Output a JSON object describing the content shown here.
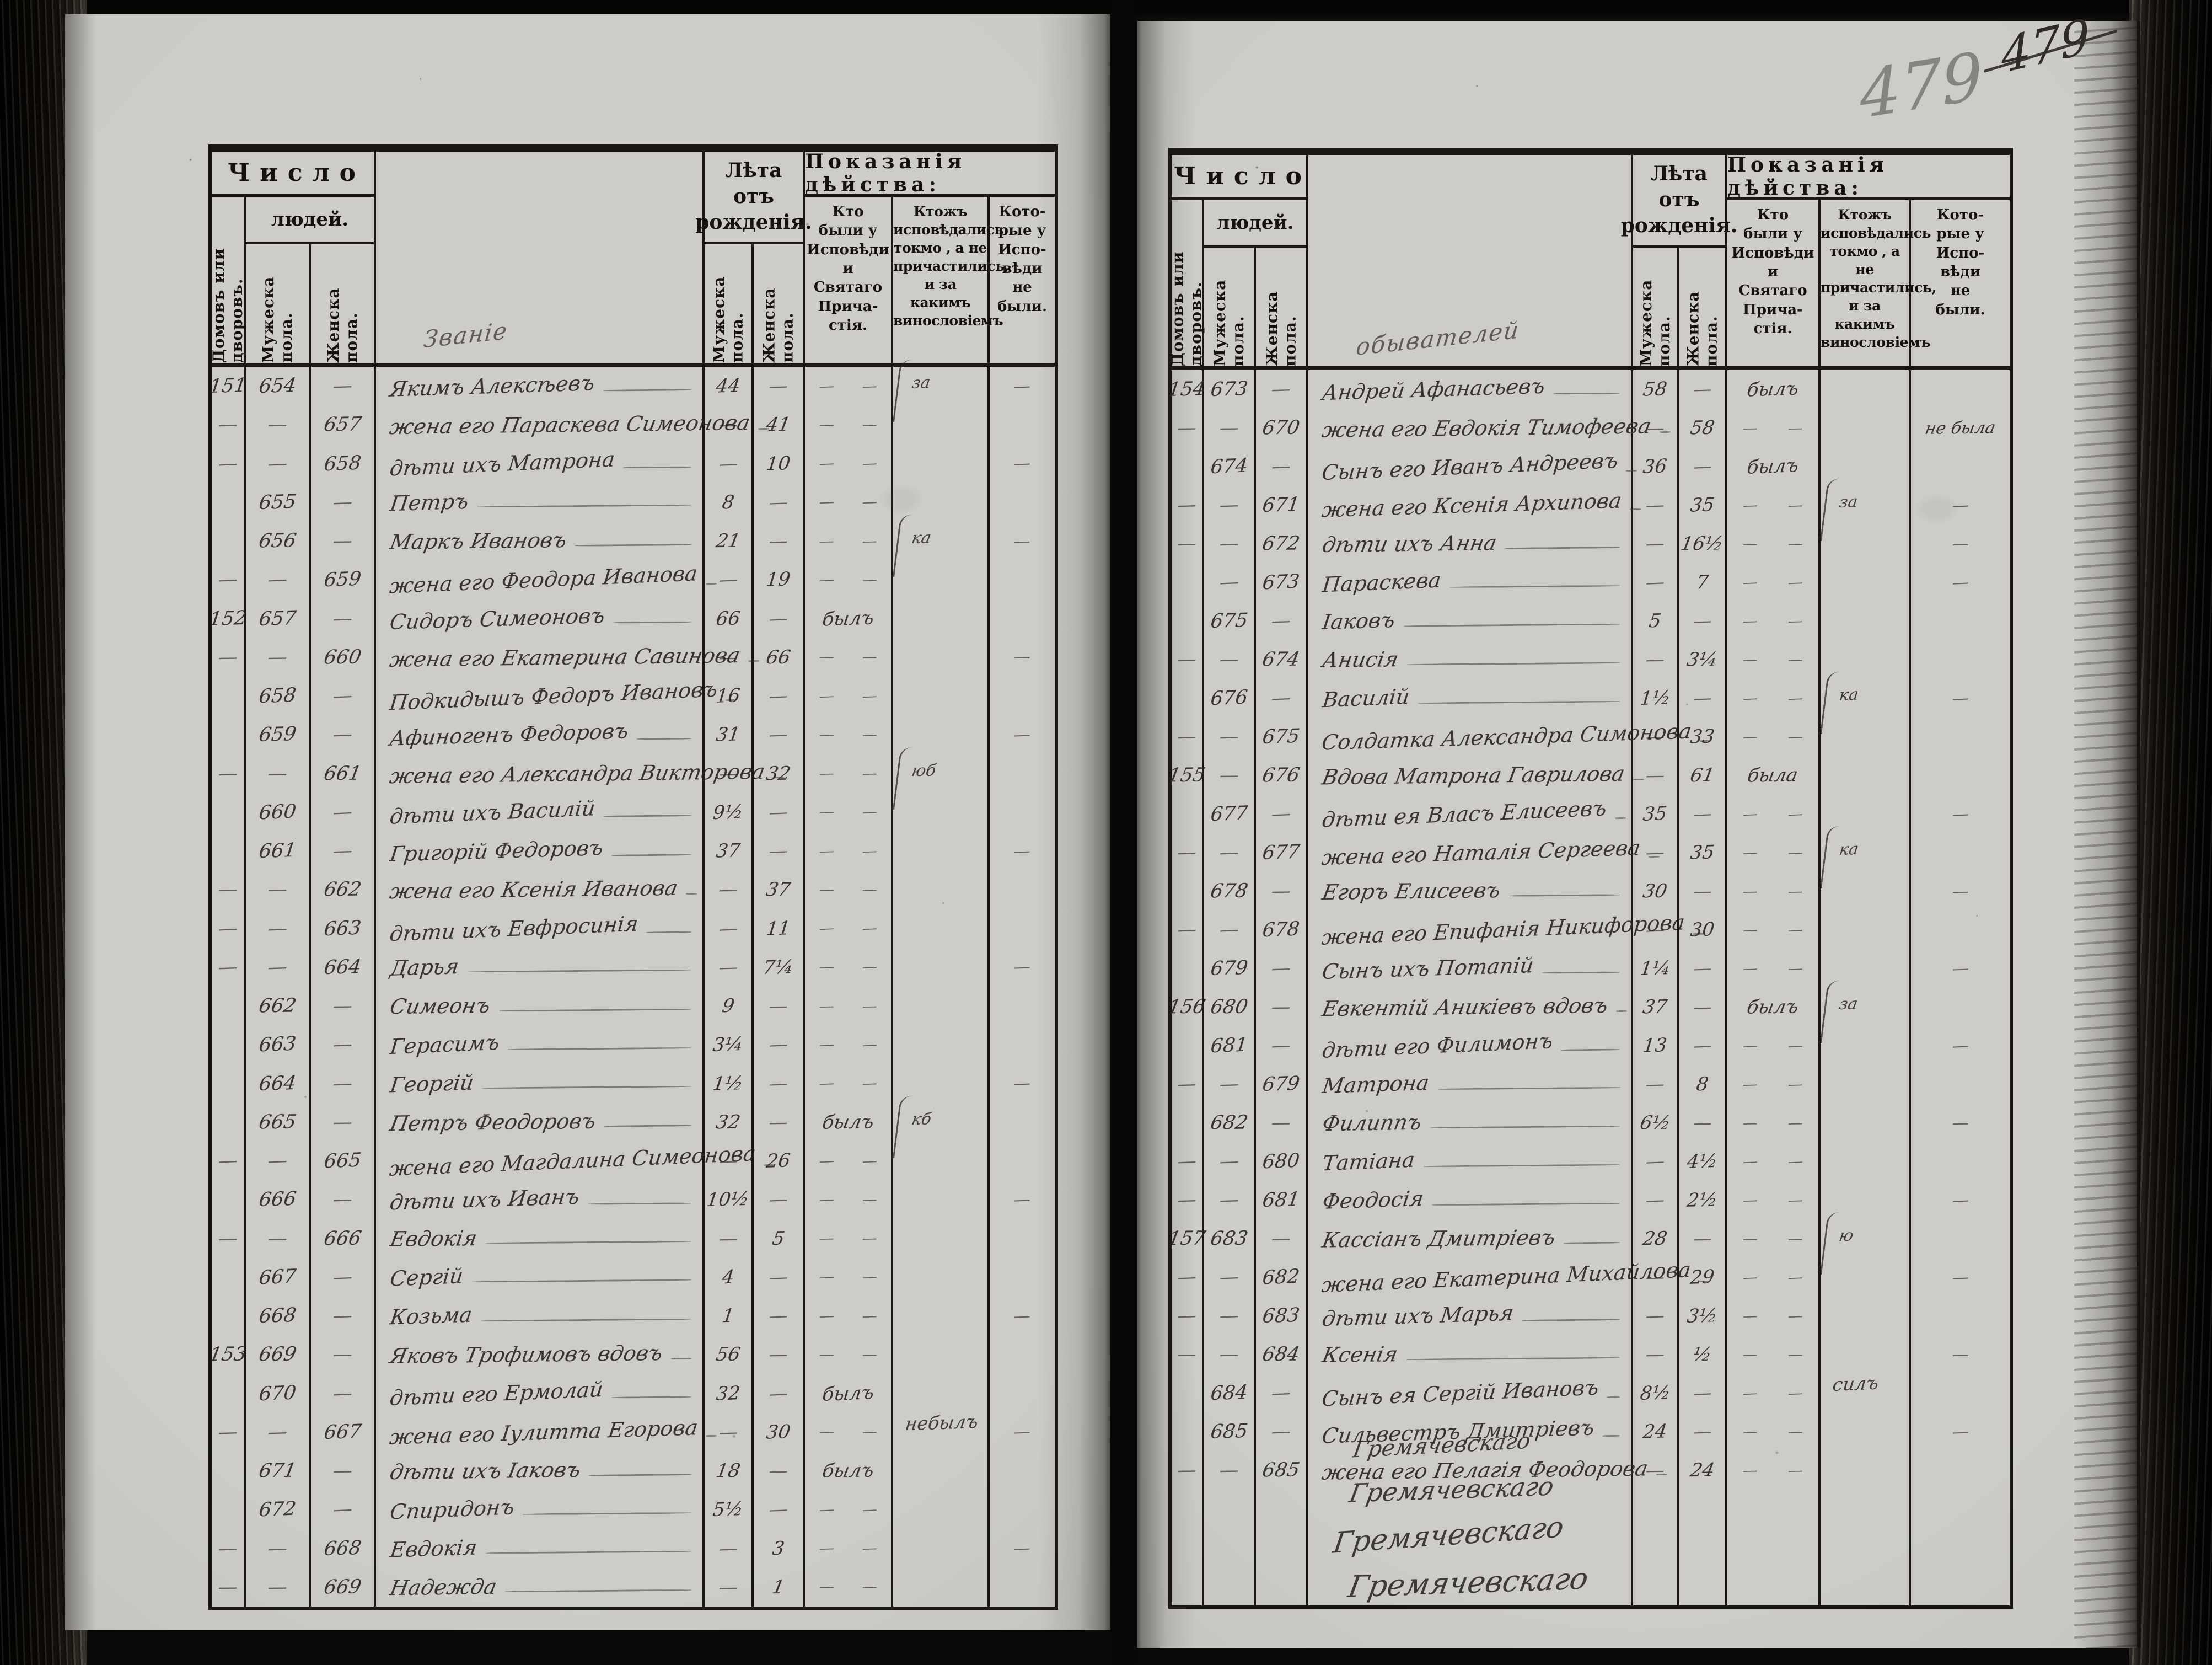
{
  "page_numbers": {
    "pencil": "479",
    "ink": "479"
  },
  "header": {
    "number_group": "Число",
    "number_group2": "людей.",
    "col_houses": "Домовъ или дворовъ.",
    "col_male": "Мужеска пола.",
    "col_female": "Женска пола.",
    "age_group": [
      "Лѣта отъ",
      "рожденія."
    ],
    "action_group": "Показанія дѣйства:",
    "action_cols": [
      [
        "Кто",
        "были у",
        "Исповѣди",
        "и",
        "Святаго",
        "Прича-",
        "стія."
      ],
      [
        "Ктожъ",
        "исповѣдались",
        "токмо , а не",
        "причастились,",
        "и за какимъ",
        "винословіемъ"
      ],
      [
        "Кото-",
        "рые у",
        "Испо-",
        "вѣди",
        "не",
        "были."
      ]
    ]
  },
  "pages": [
    {
      "side": "left",
      "scribble": "Званіе",
      "rows": [
        {
          "d": "151",
          "mn": "654",
          "fn": "—",
          "nm": "Якимъ Алексѣевъ",
          "ma": "44",
          "fa": "—",
          "cf": "— —",
          "nt": "за",
          "kt": "—"
        },
        {
          "d": "—",
          "mn": "—",
          "fn": "657",
          "nm": "жена его Параскева Симеонова",
          "ma": "—",
          "fa": "41",
          "cf": "— —",
          "nt": "",
          "kt": ""
        },
        {
          "d": "—",
          "mn": "—",
          "fn": "658",
          "nm": "дѣти ихъ Матрона",
          "ma": "—",
          "fa": "10",
          "cf": "— —",
          "nt": "",
          "kt": "—"
        },
        {
          "d": "",
          "mn": "655",
          "fn": "—",
          "nm": "Петръ",
          "ma": "8",
          "fa": "—",
          "cf": "— —",
          "nt": "",
          "kt": ""
        },
        {
          "d": "",
          "mn": "656",
          "fn": "—",
          "nm": "Маркъ Ивановъ",
          "ma": "21",
          "fa": "—",
          "cf": "— —",
          "nt": "ка",
          "kt": "—"
        },
        {
          "d": "—",
          "mn": "—",
          "fn": "659",
          "nm": "жена его Феодора Иванова",
          "ma": "—",
          "fa": "19",
          "cf": "— —",
          "nt": "",
          "kt": ""
        },
        {
          "d": "152",
          "mn": "657",
          "fn": "—",
          "nm": "Сидоръ Симеоновъ",
          "ma": "66",
          "fa": "—",
          "cf": "былъ",
          "nt": "",
          "kt": ""
        },
        {
          "d": "—",
          "mn": "—",
          "fn": "660",
          "nm": "жена его Екатерина Савинова",
          "ma": "—",
          "fa": "66",
          "cf": "— —",
          "nt": "",
          "kt": "—"
        },
        {
          "d": "",
          "mn": "658",
          "fn": "—",
          "nm": "Подкидышъ Федоръ Ивановъ",
          "ma": "16",
          "fa": "—",
          "cf": "— —",
          "nt": "",
          "kt": ""
        },
        {
          "d": "",
          "mn": "659",
          "fn": "—",
          "nm": "Афиногенъ Федоровъ",
          "ma": "31",
          "fa": "—",
          "cf": "— —",
          "nt": "",
          "kt": "—"
        },
        {
          "d": "—",
          "mn": "—",
          "fn": "661",
          "nm": "жена его Александра Викторова",
          "ma": "—",
          "fa": "32",
          "cf": "— —",
          "nt": "юб",
          "kt": ""
        },
        {
          "d": "",
          "mn": "660",
          "fn": "—",
          "nm": "дѣти ихъ Василій",
          "ma": "9½",
          "fa": "—",
          "cf": "— —",
          "nt": "",
          "kt": ""
        },
        {
          "d": "",
          "mn": "661",
          "fn": "—",
          "nm": "Григорій Федоровъ",
          "ma": "37",
          "fa": "—",
          "cf": "— —",
          "nt": "",
          "kt": "—"
        },
        {
          "d": "—",
          "mn": "—",
          "fn": "662",
          "nm": "жена его Ксенія Иванова",
          "ma": "—",
          "fa": "37",
          "cf": "— —",
          "nt": "",
          "kt": ""
        },
        {
          "d": "—",
          "mn": "—",
          "fn": "663",
          "nm": "дѣти ихъ Евфросинія",
          "ma": "—",
          "fa": "11",
          "cf": "— —",
          "nt": "",
          "kt": ""
        },
        {
          "d": "—",
          "mn": "—",
          "fn": "664",
          "nm": "Дарья",
          "ma": "—",
          "fa": "7¼",
          "cf": "— —",
          "nt": "",
          "kt": "—"
        },
        {
          "d": "",
          "mn": "662",
          "fn": "—",
          "nm": "Симеонъ",
          "ma": "9",
          "fa": "—",
          "cf": "— —",
          "nt": "",
          "kt": ""
        },
        {
          "d": "",
          "mn": "663",
          "fn": "—",
          "nm": "Герасимъ",
          "ma": "3¼",
          "fa": "—",
          "cf": "— —",
          "nt": "",
          "kt": ""
        },
        {
          "d": "",
          "mn": "664",
          "fn": "—",
          "nm": "Георгій",
          "ma": "1½",
          "fa": "—",
          "cf": "— —",
          "nt": "",
          "kt": "—"
        },
        {
          "d": "",
          "mn": "665",
          "fn": "—",
          "nm": "Петръ Феодоровъ",
          "ma": "32",
          "fa": "—",
          "cf": "былъ",
          "nt": "кб",
          "kt": ""
        },
        {
          "d": "—",
          "mn": "—",
          "fn": "665",
          "nm": "жена его Магдалина Симеонова",
          "ma": "—",
          "fa": "26",
          "cf": "— —",
          "nt": "",
          "kt": ""
        },
        {
          "d": "",
          "mn": "666",
          "fn": "—",
          "nm": "дѣти ихъ Иванъ",
          "ma": "10½",
          "fa": "—",
          "cf": "— —",
          "nt": "",
          "kt": "—"
        },
        {
          "d": "—",
          "mn": "—",
          "fn": "666",
          "nm": "Евдокія",
          "ma": "—",
          "fa": "5",
          "cf": "— —",
          "nt": "",
          "kt": ""
        },
        {
          "d": "",
          "mn": "667",
          "fn": "—",
          "nm": "Сергій",
          "ma": "4",
          "fa": "—",
          "cf": "— —",
          "nt": "",
          "kt": ""
        },
        {
          "d": "",
          "mn": "668",
          "fn": "—",
          "nm": "Козьма",
          "ma": "1",
          "fa": "—",
          "cf": "— —",
          "nt": "",
          "kt": "—"
        },
        {
          "d": "153",
          "mn": "669",
          "fn": "—",
          "nm": "Яковъ Трофимовъ вдовъ",
          "ma": "56",
          "fa": "—",
          "cf": "— —",
          "nt": "",
          "kt": ""
        },
        {
          "d": "",
          "mn": "670",
          "fn": "—",
          "nm": "дѣти его Ермолай",
          "ma": "32",
          "fa": "—",
          "cf": "былъ",
          "nt": "",
          "kt": ""
        },
        {
          "d": "—",
          "mn": "—",
          "fn": "667",
          "nm": "жена его Іулитта Егорова",
          "ma": "—",
          "fa": "30",
          "cf": "— —",
          "nt": "небылъ",
          "kt": "—"
        },
        {
          "d": "",
          "mn": "671",
          "fn": "—",
          "nm": "дѣти ихъ Іаковъ",
          "ma": "18",
          "fa": "—",
          "cf": "былъ",
          "nt": "",
          "kt": ""
        },
        {
          "d": "",
          "mn": "672",
          "fn": "—",
          "nm": "Спиридонъ",
          "ma": "5½",
          "fa": "—",
          "cf": "— —",
          "nt": "",
          "kt": ""
        },
        {
          "d": "—",
          "mn": "—",
          "fn": "668",
          "nm": "Евдокія",
          "ma": "—",
          "fa": "3",
          "cf": "— —",
          "nt": "",
          "kt": "—"
        },
        {
          "d": "—",
          "mn": "—",
          "fn": "669",
          "nm": "Надежда",
          "ma": "—",
          "fa": "1",
          "cf": "— —",
          "nt": "",
          "kt": ""
        }
      ]
    },
    {
      "side": "right",
      "scribble": "обывателей",
      "rows": [
        {
          "d": "154",
          "mn": "673",
          "fn": "—",
          "nm": "Андрей Афанасьевъ",
          "ma": "58",
          "fa": "—",
          "cf": "былъ",
          "nt": "",
          "kt": ""
        },
        {
          "d": "—",
          "mn": "—",
          "fn": "670",
          "nm": "жена его Евдокія Тимофеева",
          "ma": "—",
          "fa": "58",
          "cf": "— —",
          "nt": "",
          "kt": "не была"
        },
        {
          "d": "",
          "mn": "674",
          "fn": "—",
          "nm": "Сынъ его Иванъ Андреевъ",
          "ma": "36",
          "fa": "—",
          "cf": "былъ",
          "nt": "",
          "kt": ""
        },
        {
          "d": "—",
          "mn": "—",
          "fn": "671",
          "nm": "жена его Ксенія Архипова",
          "ma": "—",
          "fa": "35",
          "cf": "— —",
          "nt": "за",
          "kt": "—"
        },
        {
          "d": "—",
          "mn": "—",
          "fn": "672",
          "nm": "дѣти ихъ Анна",
          "ma": "—",
          "fa": "16½",
          "cf": "— —",
          "nt": "",
          "kt": "—"
        },
        {
          "d": "",
          "mn": "—",
          "fn": "673",
          "nm": "Параскева",
          "ma": "—",
          "fa": "7",
          "cf": "— —",
          "nt": "",
          "kt": "—"
        },
        {
          "d": "",
          "mn": "675",
          "fn": "—",
          "nm": "Іаковъ",
          "ma": "5",
          "fa": "—",
          "cf": "— —",
          "nt": "",
          "kt": ""
        },
        {
          "d": "—",
          "mn": "—",
          "fn": "674",
          "nm": "Анисія",
          "ma": "—",
          "fa": "3¼",
          "cf": "— —",
          "nt": "",
          "kt": ""
        },
        {
          "d": "",
          "mn": "676",
          "fn": "—",
          "nm": "Василій",
          "ma": "1½",
          "fa": "—",
          "cf": "— —",
          "nt": "ка",
          "kt": "—"
        },
        {
          "d": "—",
          "mn": "—",
          "fn": "675",
          "nm": "Солдатка Александра Симонова",
          "ma": "—",
          "fa": "33",
          "cf": "— —",
          "nt": "",
          "kt": ""
        },
        {
          "d": "155",
          "mn": "—",
          "fn": "676",
          "nm": "Вдова Матрона Гаврилова",
          "ma": "—",
          "fa": "61",
          "cf": "была",
          "nt": "",
          "kt": ""
        },
        {
          "d": "",
          "mn": "677",
          "fn": "—",
          "nm": "дѣти ея Власъ Елисеевъ",
          "ma": "35",
          "fa": "—",
          "cf": "— —",
          "nt": "",
          "kt": "—"
        },
        {
          "d": "—",
          "mn": "—",
          "fn": "677",
          "nm": "жена его Наталія Сергеева",
          "ma": "—",
          "fa": "35",
          "cf": "— —",
          "nt": "ка",
          "kt": ""
        },
        {
          "d": "",
          "mn": "678",
          "fn": "—",
          "nm": "Егоръ Елисеевъ",
          "ma": "30",
          "fa": "—",
          "cf": "— —",
          "nt": "",
          "kt": "—"
        },
        {
          "d": "—",
          "mn": "—",
          "fn": "678",
          "nm": "жена его Епифанія Никифорова",
          "ma": "—",
          "fa": "30",
          "cf": "— —",
          "nt": "",
          "kt": ""
        },
        {
          "d": "",
          "mn": "679",
          "fn": "—",
          "nm": "Сынъ ихъ Потапій",
          "ma": "1¼",
          "fa": "—",
          "cf": "— —",
          "nt": "",
          "kt": "—"
        },
        {
          "d": "156",
          "mn": "680",
          "fn": "—",
          "nm": "Евкентій Аникіевъ вдовъ",
          "ma": "37",
          "fa": "—",
          "cf": "былъ",
          "nt": "за",
          "kt": ""
        },
        {
          "d": "",
          "mn": "681",
          "fn": "—",
          "nm": "дѣти его Филимонъ",
          "ma": "13",
          "fa": "—",
          "cf": "— —",
          "nt": "",
          "kt": "—"
        },
        {
          "d": "—",
          "mn": "—",
          "fn": "679",
          "nm": "Матрона",
          "ma": "—",
          "fa": "8",
          "cf": "— —",
          "nt": "",
          "kt": ""
        },
        {
          "d": "",
          "mn": "682",
          "fn": "—",
          "nm": "Филиппъ",
          "ma": "6½",
          "fa": "—",
          "cf": "— —",
          "nt": "",
          "kt": "—"
        },
        {
          "d": "—",
          "mn": "—",
          "fn": "680",
          "nm": "Татіана",
          "ma": "—",
          "fa": "4½",
          "cf": "— —",
          "nt": "",
          "kt": ""
        },
        {
          "d": "—",
          "mn": "—",
          "fn": "681",
          "nm": "Феодосія",
          "ma": "—",
          "fa": "2½",
          "cf": "— —",
          "nt": "",
          "kt": "—"
        },
        {
          "d": "157",
          "mn": "683",
          "fn": "—",
          "nm": "Кассіанъ Дмитріевъ",
          "ma": "28",
          "fa": "—",
          "cf": "— —",
          "nt": "ю",
          "kt": ""
        },
        {
          "d": "—",
          "mn": "—",
          "fn": "682",
          "nm": "жена его Екатерина Михайлова",
          "ma": "—",
          "fa": "29",
          "cf": "— —",
          "nt": "",
          "kt": "—"
        },
        {
          "d": "—",
          "mn": "—",
          "fn": "683",
          "nm": "дѣти ихъ Марья",
          "ma": "—",
          "fa": "3½",
          "cf": "— —",
          "nt": "",
          "kt": ""
        },
        {
          "d": "—",
          "mn": "—",
          "fn": "684",
          "nm": "Ксенія",
          "ma": "—",
          "fa": "½",
          "cf": "— —",
          "nt": "",
          "kt": "—"
        },
        {
          "d": "",
          "mn": "684",
          "fn": "—",
          "nm": "Сынъ ея Сергій Ивановъ",
          "ma": "8½",
          "fa": "—",
          "cf": "— —",
          "nt": "силъ",
          "kt": ""
        },
        {
          "d": "",
          "mn": "685",
          "fn": "—",
          "nm": "Сильвестръ Дмитріевъ",
          "ma": "24",
          "fa": "—",
          "cf": "— —",
          "nt": "",
          "kt": "—"
        },
        {
          "d": "—",
          "mn": "—",
          "fn": "685",
          "nm": "жена его Пелагія Феодорова",
          "ma": "—",
          "fa": "24",
          "cf": "— —",
          "nt": "",
          "kt": ""
        }
      ],
      "signatures": [
        "Гремячевскаго",
        "Гремячевскаго",
        "Гремячевскаго",
        "Гремячевскаго"
      ]
    }
  ]
}
